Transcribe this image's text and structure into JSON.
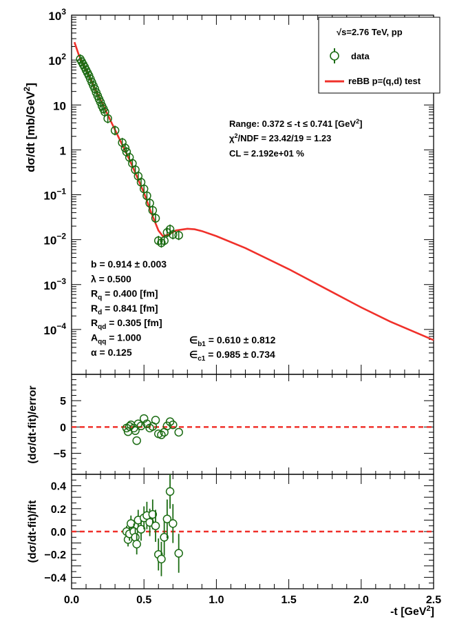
{
  "chart_data": [
    {
      "panel": "main",
      "type": "scatter",
      "yscale": "log",
      "xlim": [
        0,
        2.5
      ],
      "ylim_exp": [
        -5,
        3
      ],
      "ylabel_parts": [
        "dσ/dt [mb/GeV",
        "2",
        "]"
      ],
      "ytick_labels": [
        {
          "exp": 3,
          "base": "10",
          "sup": "3"
        },
        {
          "exp": 2,
          "base": "10",
          "sup": "2"
        },
        {
          "exp": 1,
          "base": "10",
          "sup": ""
        },
        {
          "exp": 0,
          "base": "1",
          "sup": ""
        },
        {
          "exp": -1,
          "base": "10",
          "sup": "−1"
        },
        {
          "exp": -2,
          "base": "10",
          "sup": "−2"
        },
        {
          "exp": -3,
          "base": "10",
          "sup": "−3"
        },
        {
          "exp": -4,
          "base": "10",
          "sup": "−4"
        }
      ],
      "legend": {
        "header": "√s=2.76 TeV, pp",
        "entries": [
          {
            "label": "data",
            "kind": "marker",
            "color": "#1a6b12"
          },
          {
            "label": "reBB p=(q,d) test",
            "kind": "line",
            "color": "#f0302a"
          }
        ]
      },
      "fit_info": {
        "range": "Range: 0.372 ≤ -t ≤ 0.741 [GeV",
        "range_sup": "2",
        "range_end": "]",
        "chi2": "χ",
        "chi2_sup": "2",
        "chi2_rest": "/NDF = 23.42/19 = 1.23",
        "cl": "CL = 2.192e+01 %"
      },
      "params_left": [
        {
          "name": "b",
          "sub": "",
          "value": " = 0.914 ± 0.003"
        },
        {
          "name": "λ",
          "sub": "",
          "value": " = 0.500"
        },
        {
          "name": "R",
          "sub": "q",
          "value": " = 0.400 [fm]"
        },
        {
          "name": "R",
          "sub": "d",
          "value": " = 0.841 [fm]"
        },
        {
          "name": "R",
          "sub": "qd",
          "value": " = 0.305 [fm]"
        },
        {
          "name": "A",
          "sub": "qq",
          "value": " = 1.000"
        },
        {
          "name": "α",
          "sub": "",
          "value": " = 0.125"
        }
      ],
      "params_right": [
        {
          "name": "∈",
          "sub": "b1",
          "value": " = 0.610 ± 0.812"
        },
        {
          "name": "∈",
          "sub": "c1",
          "value": " = 0.985 ± 0.734"
        }
      ],
      "data_points": {
        "x": [
          0.06,
          0.07,
          0.08,
          0.09,
          0.1,
          0.11,
          0.12,
          0.13,
          0.14,
          0.15,
          0.16,
          0.17,
          0.18,
          0.19,
          0.2,
          0.21,
          0.22,
          0.23,
          0.25,
          0.3,
          0.35,
          0.37,
          0.38,
          0.4,
          0.42,
          0.44,
          0.46,
          0.48,
          0.5,
          0.52,
          0.54,
          0.56,
          0.58,
          0.6,
          0.62,
          0.64,
          0.66,
          0.68,
          0.7,
          0.74
        ],
        "y": [
          105,
          92,
          80,
          70,
          60,
          52,
          45,
          38,
          32,
          27,
          23,
          19,
          16,
          13.5,
          11.5,
          9.5,
          8.2,
          7,
          5,
          2.7,
          1.45,
          1.1,
          0.9,
          0.68,
          0.5,
          0.36,
          0.26,
          0.19,
          0.135,
          0.095,
          0.065,
          0.045,
          0.03,
          0.0095,
          0.0085,
          0.0095,
          0.0145,
          0.017,
          0.013,
          0.0125
        ]
      },
      "fit_curve": {
        "x": [
          0.02,
          0.05,
          0.1,
          0.15,
          0.2,
          0.25,
          0.3,
          0.35,
          0.4,
          0.45,
          0.5,
          0.55,
          0.6,
          0.63,
          0.67,
          0.72,
          0.8,
          0.85,
          0.9,
          1.0,
          1.2,
          1.5,
          1.8,
          2.0,
          2.2,
          2.5
        ],
        "y": [
          250,
          130,
          60,
          28,
          13,
          6.0,
          2.8,
          1.3,
          0.6,
          0.26,
          0.11,
          0.04,
          0.016,
          0.012,
          0.013,
          0.016,
          0.0175,
          0.017,
          0.0155,
          0.012,
          0.0065,
          0.0022,
          0.00068,
          0.00031,
          0.00015,
          5.8e-05
        ]
      }
    },
    {
      "panel": "residual",
      "type": "scatter",
      "xlim": [
        0,
        2.5
      ],
      "ylim": [
        -9,
        10
      ],
      "yticks": [
        5,
        0,
        -5
      ],
      "ytick_labels": [
        "5",
        "0",
        "−5"
      ],
      "ylabel": "(dσ/dt-fit)/error",
      "zero_line_color": "#f0302a",
      "x": [
        0.38,
        0.39,
        0.4,
        0.41,
        0.43,
        0.44,
        0.45,
        0.46,
        0.48,
        0.5,
        0.52,
        0.54,
        0.56,
        0.58,
        0.6,
        0.62,
        0.64,
        0.66,
        0.68,
        0.7,
        0.74
      ],
      "y": [
        -0.2,
        -0.9,
        0.1,
        0.4,
        -0.2,
        -0.7,
        -2.6,
        0.6,
        0.2,
        1.6,
        0.6,
        -0.2,
        0.1,
        1.3,
        -1.3,
        -1.5,
        -1.0,
        0.2,
        1.0,
        0.4,
        -1.0
      ]
    },
    {
      "panel": "relative",
      "type": "scatter",
      "xlim": [
        0,
        2.5
      ],
      "ylim": [
        -0.5,
        0.5
      ],
      "yticks": [
        0.4,
        0.2,
        0.0,
        -0.2,
        -0.4
      ],
      "ytick_labels": [
        "0.4",
        "0.2",
        "0.0",
        "−0.2",
        "−0.4"
      ],
      "ylabel": "(dσ/dt-fit)/fit",
      "xticks": [
        0,
        0.5,
        1,
        1.5,
        2,
        2.5
      ],
      "xtick_labels": [
        "0.0",
        "0.5",
        "1.0",
        "1.5",
        "2.0",
        "2.5"
      ],
      "xlabel_parts": [
        "-t [GeV",
        "2",
        "]"
      ],
      "zero_line_color": "#f0302a",
      "x": [
        0.38,
        0.39,
        0.4,
        0.41,
        0.43,
        0.44,
        0.45,
        0.46,
        0.48,
        0.5,
        0.52,
        0.54,
        0.56,
        0.58,
        0.6,
        0.62,
        0.64,
        0.66,
        0.68,
        0.7,
        0.74
      ],
      "y": [
        0.0,
        -0.07,
        -0.02,
        0.07,
        0.0,
        -0.05,
        -0.11,
        0.1,
        0.02,
        0.12,
        0.14,
        0.08,
        0.15,
        0.05,
        -0.2,
        -0.24,
        -0.05,
        0.11,
        0.35,
        0.07,
        -0.19
      ],
      "err": [
        0.05,
        0.06,
        0.06,
        0.07,
        0.07,
        0.08,
        0.09,
        0.09,
        0.1,
        0.1,
        0.12,
        0.12,
        0.13,
        0.14,
        0.14,
        0.15,
        0.16,
        0.17,
        0.15,
        0.17,
        0.17
      ]
    }
  ]
}
